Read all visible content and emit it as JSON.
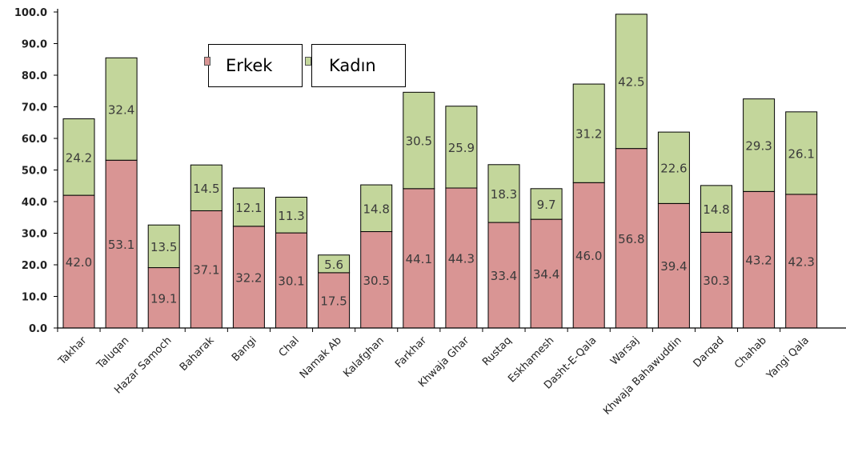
{
  "chart_data": {
    "type": "bar",
    "stacked": true,
    "categories": [
      "Takhar",
      "Taluqan",
      "Hazar Samoch",
      "Baharak",
      "Bangi",
      "Chal",
      "Namak Ab",
      "Kalafghan",
      "Farkhar",
      "Khwaja Ghar",
      "Rustaq",
      "Eskhamesh",
      "Dasht-E-Qala",
      "Warsaj",
      "Khwaja Bahawuddin",
      "Darqad",
      "Chahab",
      "Yangi Qala"
    ],
    "series": [
      {
        "name": "Erkek",
        "color": "#d99594",
        "values": [
          42.0,
          53.1,
          19.1,
          37.1,
          32.2,
          30.1,
          17.5,
          30.5,
          44.1,
          44.3,
          33.4,
          34.4,
          46.0,
          56.8,
          39.4,
          30.3,
          43.2,
          42.3
        ]
      },
      {
        "name": "Kadın",
        "color": "#c3d69b",
        "values": [
          24.2,
          32.4,
          13.5,
          14.5,
          12.1,
          11.3,
          5.6,
          14.8,
          30.5,
          25.9,
          18.3,
          9.7,
          31.2,
          42.5,
          22.6,
          14.8,
          29.3,
          26.1
        ]
      }
    ],
    "ylim": [
      0,
      100
    ],
    "yticks": [
      "0.0",
      "10.0",
      "20.0",
      "30.0",
      "40.0",
      "50.0",
      "60.0",
      "70.0",
      "80.0",
      "90.0",
      "100.0"
    ],
    "grid": false,
    "legend": "top-left"
  }
}
